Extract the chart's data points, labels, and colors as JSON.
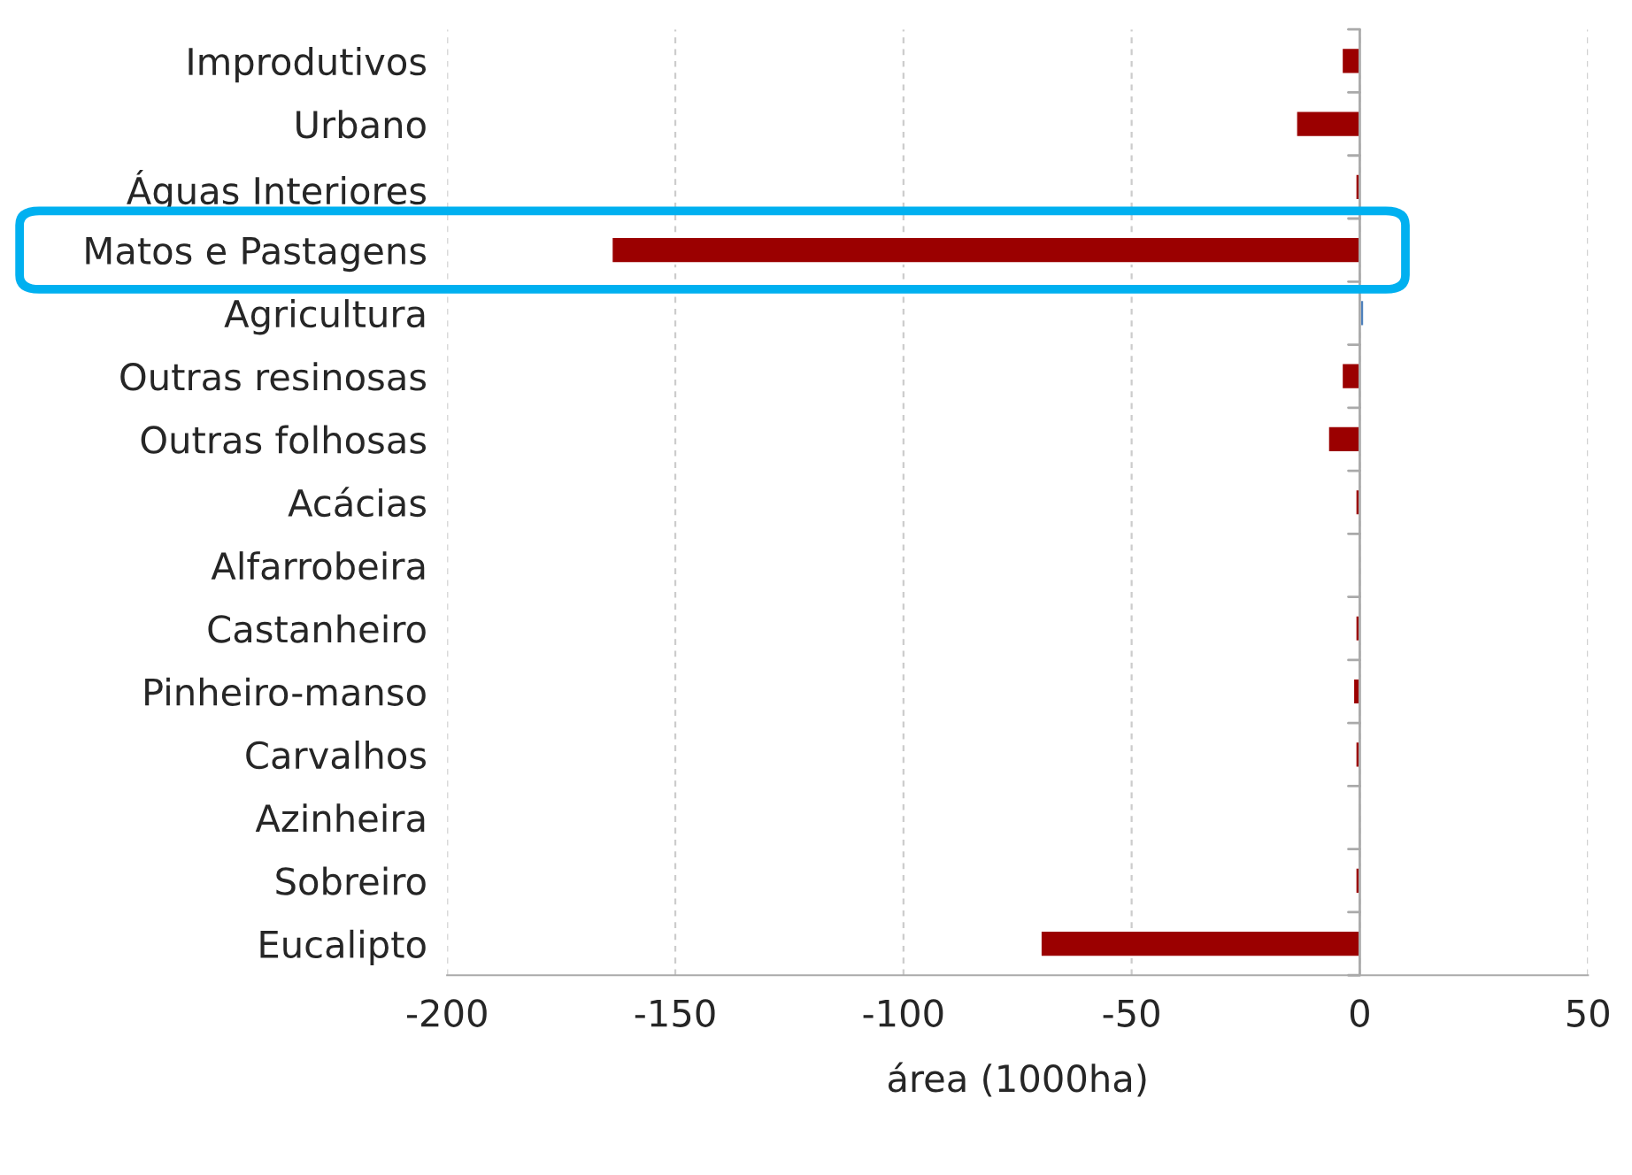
{
  "chart_data": {
    "type": "bar",
    "orientation": "horizontal",
    "xlabel": "área (1000ha)",
    "categories": [
      "Improdutivos",
      "Urbano",
      "Águas Interiores",
      "Matos e Pastagens",
      "Agricultura",
      "Outras resinosas",
      "Outras folhosas",
      "Acácias",
      "Alfarrobeira",
      "Castanheiro",
      "Pinheiro-manso",
      "Carvalhos",
      "Azinheira",
      "Sobreiro",
      "Eucalipto"
    ],
    "values": [
      -4,
      -14,
      -1,
      -164,
      1,
      -4,
      -7,
      -1,
      null,
      -1,
      -1.5,
      -1,
      null,
      -1,
      -70
    ],
    "colors": [
      "#9b0000",
      "#9b0000",
      "#9b0000",
      "#9b0000",
      "#4f81bd",
      "#9b0000",
      "#9b0000",
      "#9b0000",
      "#9b0000",
      "#9b0000",
      "#9b0000",
      "#9b0000",
      "#9b0000",
      "#9b0000",
      "#9b0000"
    ],
    "xlim": [
      -200,
      50
    ],
    "xticks": [
      -200,
      -150,
      -100,
      -50,
      0,
      50
    ],
    "grid": "x",
    "legend": false
  }
}
